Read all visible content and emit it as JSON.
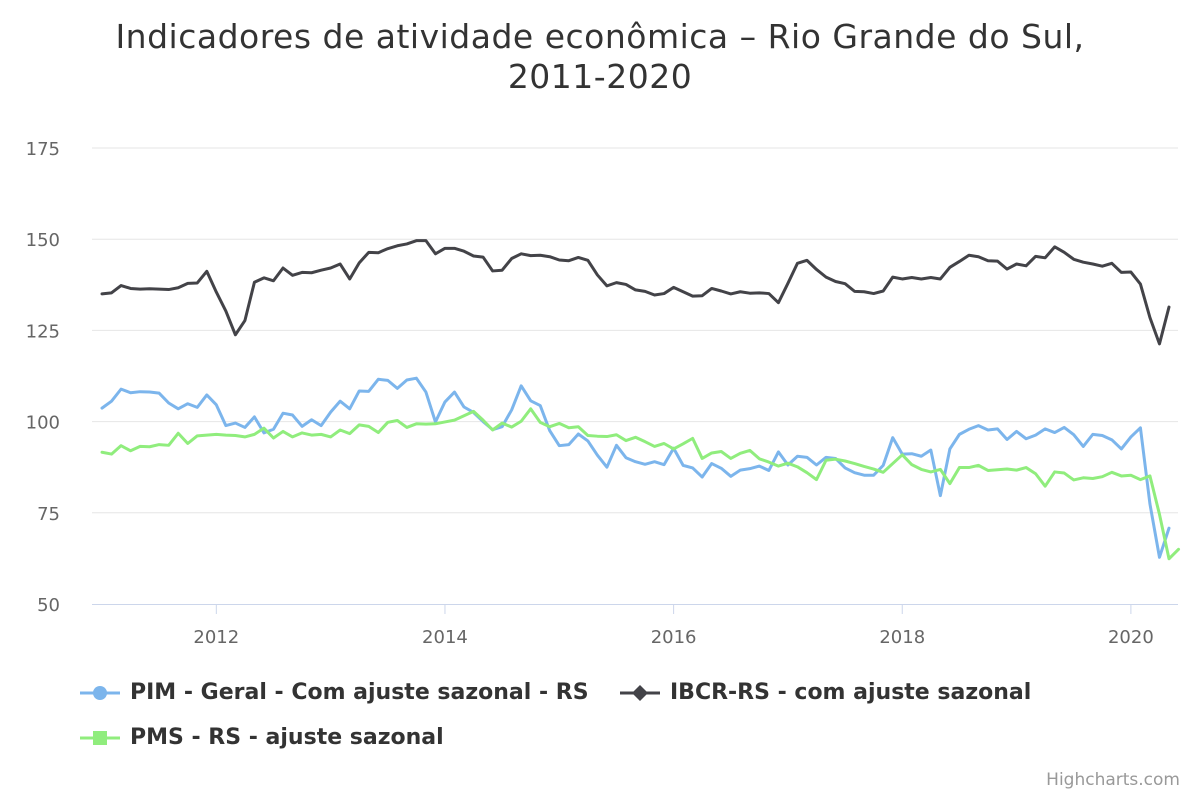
{
  "chart_data": {
    "type": "line",
    "title": "Indicadores de atividade econômica – Rio Grande do Sul, 2011-2020",
    "title_lines": [
      "Indicadores de atividade econômica – Rio Grande do Sul,",
      "2011-2020"
    ],
    "xlabel": "",
    "ylabel": "",
    "start": "2011-01",
    "interval": "month",
    "ylim": [
      50,
      175
    ],
    "yticks": [
      50,
      75,
      100,
      125,
      150,
      175
    ],
    "xticks": [
      "2012",
      "2014",
      "2016",
      "2018",
      "2020"
    ],
    "grid": true,
    "legend_position": "bottom",
    "series": [
      {
        "name": "PIM - Geral - Com ajuste sazonal - RS",
        "color": "#7cb5ec",
        "marker": "circle",
        "values": [
          103.7,
          105.6,
          108.9,
          107.9,
          108.2,
          108.1,
          107.8,
          105.1,
          103.5,
          104.9,
          103.9,
          107.3,
          104.6,
          98.9,
          99.6,
          98.4,
          101.3,
          96.9,
          97.9,
          102.3,
          101.8,
          98.7,
          100.5,
          98.9,
          102.6,
          105.6,
          103.5,
          108.4,
          108.3,
          111.6,
          111.3,
          109.1,
          111.4,
          111.9,
          108.1,
          99.9,
          105.4,
          108.1,
          104.0,
          102.5,
          100.0,
          97.8,
          98.6,
          103.2,
          109.8,
          105.7,
          104.4,
          97.5,
          93.4,
          93.7,
          96.6,
          94.7,
          90.8,
          87.5,
          93.5,
          90.1,
          89.0,
          88.3,
          89.0,
          88.2,
          92.7,
          88.0,
          87.3,
          84.8,
          88.5,
          87.2,
          85.0,
          86.7,
          87.1,
          87.8,
          86.6,
          91.7,
          88.1,
          90.5,
          90.2,
          88.1,
          90.2,
          89.9,
          87.3,
          86.0,
          85.3,
          85.3,
          88.0,
          95.6,
          91.1,
          91.2,
          90.5,
          92.2,
          79.7,
          92.5,
          96.5,
          97.9,
          98.9,
          97.7,
          98.0,
          95.1,
          97.3,
          95.3,
          96.3,
          98.0,
          97.0,
          98.4,
          96.4,
          93.2,
          96.5,
          96.2,
          95.0,
          92.5,
          95.8,
          98.3,
          77.4,
          62.8,
          70.8
        ]
      },
      {
        "name": "IBCR-RS - com ajuste sazonal",
        "color": "#434348",
        "marker": "diamond",
        "values": [
          135.0,
          135.3,
          137.3,
          136.5,
          136.3,
          136.4,
          136.3,
          136.2,
          136.7,
          137.9,
          138.0,
          141.2,
          135.5,
          130.3,
          123.8,
          127.7,
          138.2,
          139.4,
          138.6,
          142.1,
          140.1,
          140.9,
          140.8,
          141.5,
          142.1,
          143.2,
          139.1,
          143.5,
          146.4,
          146.3,
          147.4,
          148.2,
          148.7,
          149.6,
          149.6,
          146.0,
          147.5,
          147.5,
          146.7,
          145.4,
          145.1,
          141.3,
          141.5,
          144.7,
          146.0,
          145.5,
          145.6,
          145.2,
          144.3,
          144.1,
          145.0,
          144.2,
          140.2,
          137.2,
          138.1,
          137.6,
          136.1,
          135.7,
          134.7,
          135.1,
          136.8,
          135.6,
          134.4,
          134.5,
          136.5,
          135.8,
          135.0,
          135.6,
          135.2,
          135.3,
          135.1,
          132.6,
          137.9,
          143.4,
          144.2,
          141.7,
          139.6,
          138.4,
          137.8,
          135.7,
          135.6,
          135.1,
          135.8,
          139.6,
          139.1,
          139.5,
          139.1,
          139.5,
          139.1,
          142.3,
          143.9,
          145.6,
          145.2,
          144.1,
          144.0,
          141.8,
          143.2,
          142.7,
          145.3,
          144.9,
          147.9,
          146.4,
          144.5,
          143.7,
          143.2,
          142.6,
          143.4,
          140.9,
          141.0,
          137.7,
          128.5,
          121.3,
          131.4
        ]
      },
      {
        "name": "PMS - RS - ajuste sazonal",
        "color": "#90ed7d",
        "marker": "square",
        "values": [
          91.6,
          91.1,
          93.4,
          92.0,
          93.2,
          93.1,
          93.7,
          93.5,
          96.8,
          94.0,
          96.1,
          96.3,
          96.5,
          96.3,
          96.2,
          95.8,
          96.5,
          98.2,
          95.5,
          97.3,
          95.8,
          96.9,
          96.3,
          96.5,
          95.8,
          97.7,
          96.7,
          99.1,
          98.7,
          97.0,
          99.8,
          100.3,
          98.4,
          99.4,
          99.3,
          99.4,
          99.9,
          100.4,
          101.6,
          102.8,
          100.4,
          97.7,
          99.6,
          98.5,
          100.1,
          103.5,
          99.8,
          98.6,
          99.5,
          98.3,
          98.6,
          96.2,
          96.0,
          95.9,
          96.4,
          94.8,
          95.7,
          94.5,
          93.2,
          94.0,
          92.5,
          93.9,
          95.4,
          89.9,
          91.4,
          91.8,
          89.9,
          91.3,
          92.1,
          89.8,
          88.9,
          87.8,
          88.6,
          87.6,
          86.0,
          84.1,
          89.4,
          89.7,
          89.2,
          88.5,
          87.7,
          87.0,
          86.1,
          88.5,
          90.9,
          88.2,
          86.9,
          86.2,
          86.9,
          83.0,
          87.4,
          87.4,
          88.0,
          86.6,
          86.8,
          87.0,
          86.7,
          87.4,
          85.7,
          82.3,
          86.2,
          85.9,
          84.0,
          84.6,
          84.4,
          84.9,
          86.1,
          85.1,
          85.3,
          84.1,
          85.1,
          74.6,
          62.4,
          65.0
        ]
      }
    ]
  },
  "credit": "Highcharts.com"
}
